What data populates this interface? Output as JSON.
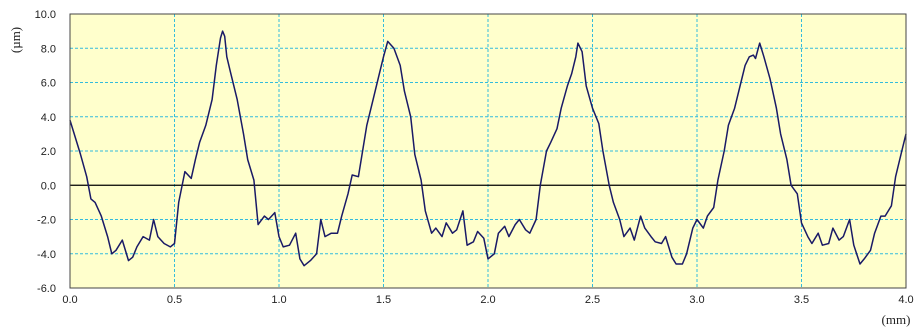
{
  "chart_data": {
    "type": "line",
    "xlabel": "(mm)",
    "ylabel": "(µm)",
    "xlim": [
      0.0,
      4.0
    ],
    "ylim": [
      -6.0,
      10.0
    ],
    "x_ticks": [
      "0.0",
      "0.5",
      "1.0",
      "1.5",
      "2.0",
      "2.5",
      "3.0",
      "3.5",
      "4.0"
    ],
    "y_ticks": [
      "10.0",
      "8.0",
      "6.0",
      "4.0",
      "2.0",
      "0.0",
      "-2.0",
      "-4.0",
      "-6.0"
    ],
    "grid": true,
    "zero_line": true,
    "colors": {
      "background": "#ffffcc",
      "grid": "#33bbdd",
      "line": "#1a1a66",
      "zero": "#000000"
    },
    "series": [
      {
        "x": [
          0.0,
          0.02,
          0.05,
          0.08,
          0.1,
          0.12,
          0.15,
          0.18,
          0.2,
          0.22,
          0.25,
          0.28,
          0.3,
          0.32,
          0.35,
          0.38,
          0.4,
          0.42,
          0.45,
          0.48,
          0.5,
          0.52,
          0.55,
          0.58,
          0.6,
          0.62,
          0.65,
          0.68,
          0.7,
          0.72,
          0.73,
          0.74,
          0.75,
          0.77,
          0.8,
          0.83,
          0.85,
          0.88,
          0.9,
          0.93,
          0.95,
          0.98,
          1.0,
          1.02,
          1.05,
          1.08,
          1.1,
          1.12,
          1.15,
          1.18,
          1.2,
          1.22,
          1.25,
          1.28,
          1.3,
          1.33,
          1.35,
          1.38,
          1.4,
          1.42,
          1.45,
          1.48,
          1.5,
          1.52,
          1.55,
          1.58,
          1.6,
          1.63,
          1.65,
          1.68,
          1.7,
          1.73,
          1.75,
          1.78,
          1.8,
          1.83,
          1.85,
          1.88,
          1.9,
          1.93,
          1.95,
          1.98,
          2.0,
          2.03,
          2.05,
          2.08,
          2.1,
          2.13,
          2.15,
          2.18,
          2.2,
          2.23,
          2.25,
          2.28,
          2.3,
          2.33,
          2.35,
          2.38,
          2.4,
          2.42,
          2.43,
          2.45,
          2.47,
          2.5,
          2.53,
          2.55,
          2.58,
          2.6,
          2.63,
          2.65,
          2.68,
          2.7,
          2.73,
          2.75,
          2.78,
          2.8,
          2.83,
          2.85,
          2.88,
          2.9,
          2.93,
          2.95,
          2.98,
          3.0,
          3.03,
          3.05,
          3.08,
          3.1,
          3.13,
          3.15,
          3.18,
          3.2,
          3.23,
          3.25,
          3.27,
          3.28,
          3.3,
          3.32,
          3.35,
          3.38,
          3.4,
          3.43,
          3.45,
          3.48,
          3.5,
          3.53,
          3.55,
          3.58,
          3.6,
          3.63,
          3.65,
          3.68,
          3.7,
          3.73,
          3.75,
          3.78,
          3.8,
          3.83,
          3.85,
          3.88,
          3.9,
          3.93,
          3.95,
          3.98,
          4.0
        ],
        "y": [
          3.8,
          3.0,
          1.8,
          0.5,
          -0.8,
          -1.0,
          -1.8,
          -3.0,
          -4.0,
          -3.8,
          -3.2,
          -4.4,
          -4.2,
          -3.6,
          -3.0,
          -3.2,
          -2.0,
          -3.0,
          -3.4,
          -3.6,
          -3.4,
          -1.0,
          0.8,
          0.4,
          1.5,
          2.5,
          3.5,
          5.0,
          7.0,
          8.6,
          9.0,
          8.7,
          7.5,
          6.5,
          5.0,
          3.0,
          1.5,
          0.3,
          -2.3,
          -1.8,
          -2.0,
          -1.6,
          -3.0,
          -3.6,
          -3.5,
          -2.8,
          -4.3,
          -4.7,
          -4.4,
          -4.0,
          -2.0,
          -3.0,
          -2.8,
          -2.8,
          -1.8,
          -0.5,
          0.6,
          0.5,
          2.0,
          3.5,
          5.0,
          6.5,
          7.5,
          8.4,
          8.0,
          7.0,
          5.5,
          4.0,
          1.8,
          0.3,
          -1.5,
          -2.8,
          -2.5,
          -3.0,
          -2.2,
          -2.8,
          -2.6,
          -1.5,
          -3.5,
          -3.3,
          -2.7,
          -3.1,
          -4.3,
          -4.0,
          -2.8,
          -2.4,
          -3.0,
          -2.3,
          -2.0,
          -2.6,
          -2.8,
          -2.0,
          0.0,
          2.0,
          2.5,
          3.3,
          4.5,
          5.8,
          6.5,
          7.5,
          8.3,
          7.8,
          5.8,
          4.5,
          3.6,
          2.0,
          0.0,
          -1.0,
          -2.0,
          -3.0,
          -2.5,
          -3.2,
          -1.8,
          -2.5,
          -3.0,
          -3.3,
          -3.4,
          -3.0,
          -4.2,
          -4.6,
          -4.6,
          -4.0,
          -2.5,
          -2.0,
          -2.5,
          -1.8,
          -1.3,
          0.3,
          2.0,
          3.5,
          4.5,
          5.5,
          7.0,
          7.5,
          7.6,
          7.4,
          8.3,
          7.5,
          6.2,
          4.5,
          3.0,
          1.5,
          0.0,
          -0.5,
          -2.2,
          -3.0,
          -3.4,
          -2.8,
          -3.5,
          -3.4,
          -2.5,
          -3.2,
          -3.0,
          -2.0,
          -3.5,
          -4.6,
          -4.3,
          -3.8,
          -2.8,
          -1.8,
          -1.8,
          -1.2,
          0.5,
          2.0,
          3.0
        ]
      }
    ]
  }
}
